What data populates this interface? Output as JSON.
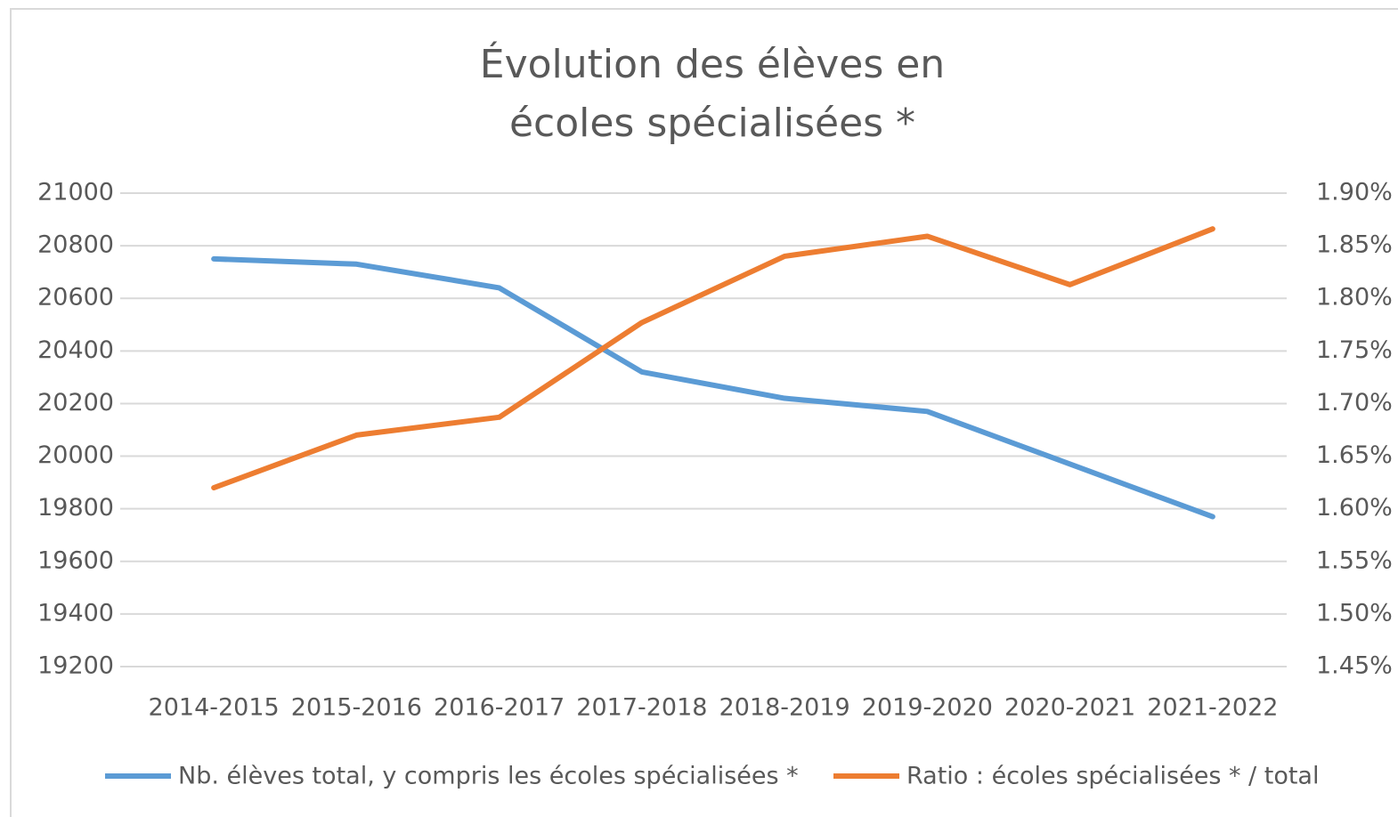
{
  "chart_data": {
    "type": "line",
    "title": "Évolution des élèves en\nécoles spécialisées *",
    "categories": [
      "2014-2015",
      "2015-2016",
      "2016-2017",
      "2017-2018",
      "2018-2019",
      "2019-2020",
      "2020-2021",
      "2021-2022"
    ],
    "series": [
      {
        "name": "Nb. élèves total, y compris les écoles spécialisées *",
        "color": "#5b9bd5",
        "axis": "y",
        "values": [
          20750,
          20730,
          20640,
          20320,
          20220,
          20170,
          19970,
          19770
        ]
      },
      {
        "name": "Ratio : écoles spécialisées * / total",
        "color": "#ed7d31",
        "axis": "y2",
        "values": [
          1.62,
          1.67,
          1.687,
          1.777,
          1.84,
          1.859,
          1.813,
          1.866
        ]
      }
    ],
    "ylim": [
      19200,
      21000
    ],
    "yticks": [
      19200,
      19400,
      19600,
      19800,
      20000,
      20200,
      20400,
      20600,
      20800,
      21000
    ],
    "y2lim": [
      1.45,
      1.9
    ],
    "y2ticks": [
      {
        "value": 1.45,
        "label": "1.45%"
      },
      {
        "value": 1.5,
        "label": "1.50%"
      },
      {
        "value": 1.55,
        "label": "1.55%"
      },
      {
        "value": 1.6,
        "label": "1.60%"
      },
      {
        "value": 1.65,
        "label": "1.65%"
      },
      {
        "value": 1.7,
        "label": "1.70%"
      },
      {
        "value": 1.75,
        "label": "1.75%"
      },
      {
        "value": 1.8,
        "label": "1.80%"
      },
      {
        "value": 1.85,
        "label": "1.85%"
      },
      {
        "value": 1.9,
        "label": "1.90%"
      }
    ],
    "grid": true,
    "legend": "bottom"
  }
}
